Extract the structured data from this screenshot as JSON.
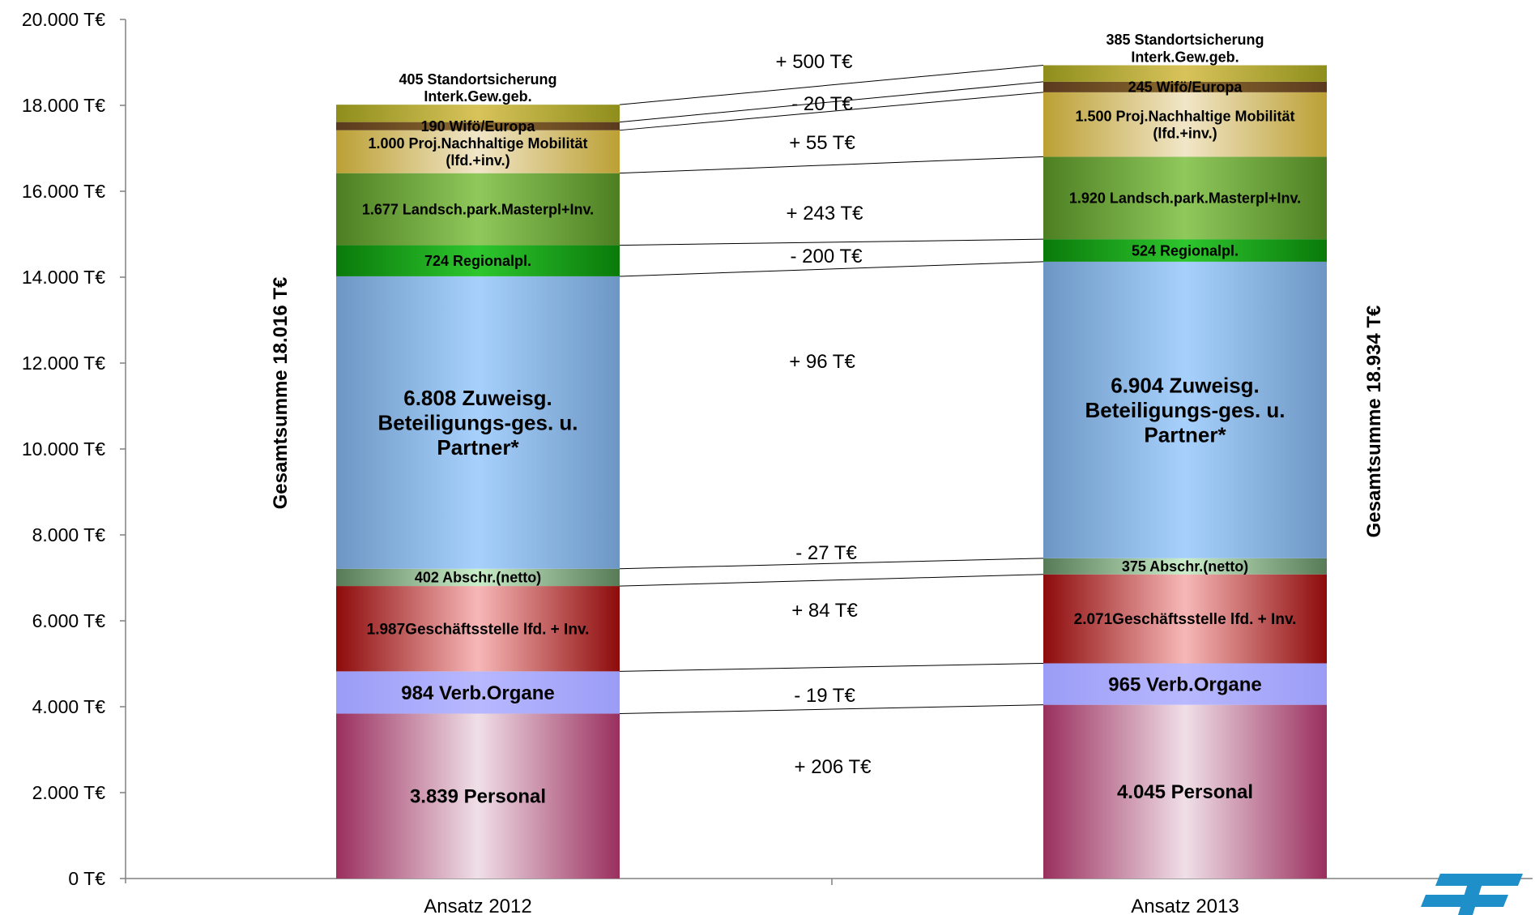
{
  "chart_data": {
    "type": "bar",
    "stacked": true,
    "categories": [
      "Ansatz  2012",
      "Ansatz  2013"
    ],
    "ylim": [
      0,
      20000
    ],
    "yticks": [
      {
        "value": 0,
        "label": "0 T€"
      },
      {
        "value": 2000,
        "label": "2.000 T€"
      },
      {
        "value": 4000,
        "label": "4.000 T€"
      },
      {
        "value": 6000,
        "label": "6.000 T€"
      },
      {
        "value": 8000,
        "label": "8.000 T€"
      },
      {
        "value": 10000,
        "label": "10.000 T€"
      },
      {
        "value": 12000,
        "label": "12.000 T€"
      },
      {
        "value": 14000,
        "label": "14.000 T€"
      },
      {
        "value": 16000,
        "label": "16.000 T€"
      },
      {
        "value": 18000,
        "label": "18.000 T€"
      },
      {
        "value": 20000,
        "label": "20.000 T€"
      }
    ],
    "totals": [
      "Gesamtsumme 18.016 T€",
      "Gesamtsumme 18.934 T€"
    ],
    "series": [
      {
        "values": [
          3839,
          4045
        ],
        "labels": [
          [
            "3.839 Personal"
          ],
          [
            "4.045 Personal"
          ]
        ],
        "colors": [
          "#9a2f5e",
          "#f0dfe7"
        ],
        "size": 24
      },
      {
        "values": [
          984,
          965
        ],
        "labels": [
          [
            "984 Verb.Organe"
          ],
          [
            "965 Verb.Organe"
          ]
        ],
        "colors": [
          "#9a9cf6",
          "#b8b8ff"
        ],
        "size": 24
      },
      {
        "values": [
          1987,
          2071
        ],
        "labels": [
          [
            "1.987Geschäftsstelle lfd. + Inv."
          ],
          [
            "2.071Geschäftsstelle lfd. + Inv."
          ]
        ],
        "colors": [
          "#8d0b0b",
          "#f7b7b7"
        ],
        "size": 19
      },
      {
        "values": [
          402,
          375
        ],
        "labels": [
          [
            "402 Abschr.(netto)"
          ],
          [
            "375 Abschr.(netto)"
          ]
        ],
        "colors": [
          "#577a57",
          "#c9eec9"
        ],
        "size": 18
      },
      {
        "values": [
          6808,
          6904
        ],
        "labels": [
          [
            "6.808 Zuweisg.",
            "Beteiligungs-ges. u.",
            "Partner*"
          ],
          [
            "6.904 Zuweisg.",
            "Beteiligungs-ges. u.",
            "Partner*"
          ]
        ],
        "colors": [
          "#6d96c4",
          "#a7d1fc"
        ],
        "size": 26
      },
      {
        "values": [
          724,
          524
        ],
        "labels": [
          [
            "724 Regionalpl."
          ],
          [
            "524 Regionalpl."
          ]
        ],
        "colors": [
          "#0a7a0a",
          "#2ec62e"
        ],
        "size": 18
      },
      {
        "values": [
          1677,
          1920
        ],
        "labels": [
          [
            "1.677 Landsch.park.Masterpl+Inv."
          ],
          [
            "1.920 Landsch.park.Masterpl+Inv."
          ]
        ],
        "colors": [
          "#4d7f22",
          "#8fc85b"
        ],
        "size": 18
      },
      {
        "values": [
          1000,
          1500
        ],
        "labels": [
          [
            "1.000 Proj.Nachhaltige Mobilität",
            "(lfd.+inv.)"
          ],
          [
            "1.500 Proj.Nachhaltige Mobilität",
            "(lfd.+inv.)"
          ]
        ],
        "colors": [
          "#bba034",
          "#f1e6c8"
        ],
        "size": 18
      },
      {
        "values": [
          190,
          245
        ],
        "labels": [
          [
            "190 Wifö/Europa"
          ],
          [
            "245 Wifö/Europa"
          ]
        ],
        "colors": [
          "#5a3a1e",
          "#8a6a2e"
        ],
        "size": 18
      },
      {
        "values": [
          405,
          385
        ],
        "labels": [
          [
            "405 Standortsicherung",
            "Interk.Gew.geb."
          ],
          [
            "385 Standortsicherung",
            "Interk.Gew.geb."
          ]
        ],
        "colors": [
          "#8e8e1c",
          "#d8c35a"
        ],
        "size": 18
      }
    ],
    "differences": [
      {
        "label": "+ 206 T€"
      },
      {
        "label": "-  19 T€"
      },
      {
        "label": "+ 84 T€"
      },
      {
        "label": "-  27 T€"
      },
      {
        "label": "+ 96 T€"
      },
      {
        "label": "-  200 T€"
      },
      {
        "label": "+ 243 T€"
      },
      {
        "label": "+ 55 T€"
      },
      {
        "label": "-  20 T€"
      },
      {
        "label": "+ 500 T€"
      }
    ]
  }
}
